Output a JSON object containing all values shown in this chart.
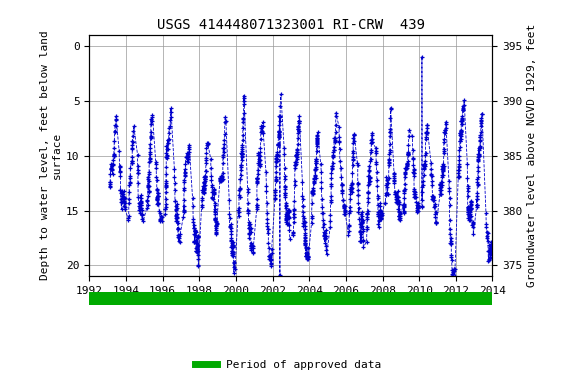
{
  "title": "USGS 414448071323001 RI-CRW  439",
  "ylabel_left": "Depth to water level, feet below land\nsurface",
  "ylabel_right": "Groundwater level above NGVD 1929, feet",
  "xlim": [
    1992,
    2014
  ],
  "ylim_left": [
    21,
    -1
  ],
  "ylim_right": [
    374,
    396
  ],
  "yticks_left": [
    0,
    5,
    10,
    15,
    20
  ],
  "yticks_right": [
    375,
    380,
    385,
    390,
    395
  ],
  "xticks": [
    1992,
    1994,
    1996,
    1998,
    2000,
    2002,
    2004,
    2006,
    2008,
    2010,
    2012,
    2014
  ],
  "line_color": "#0000cc",
  "marker": "+",
  "linestyle": "--",
  "legend_label": "Period of approved data",
  "legend_color": "#00aa00",
  "background_color": "#ffffff",
  "grid_color": "#999999",
  "title_fontsize": 10,
  "axis_label_fontsize": 8,
  "tick_fontsize": 8,
  "seed": 42
}
